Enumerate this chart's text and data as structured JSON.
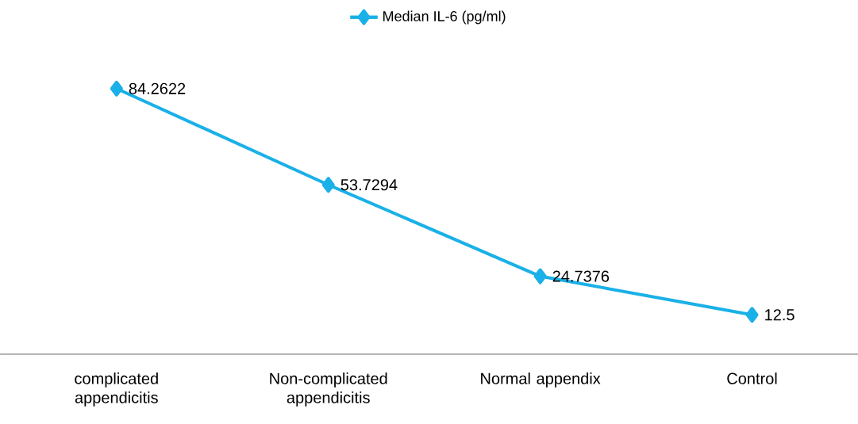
{
  "chart_data": {
    "type": "line",
    "categories": [
      "complicated appendicitis",
      "Non-complicated appendicitis",
      "Normal appendix",
      "Control"
    ],
    "series": [
      {
        "name": "Median IL-6 (pg/ml)",
        "color": "#1ab0e8",
        "values": [
          84.2622,
          53.7294,
          24.7376,
          12.5
        ]
      }
    ],
    "data_labels": true,
    "legend": "top",
    "marker": "diamond",
    "line_style": "solid"
  }
}
